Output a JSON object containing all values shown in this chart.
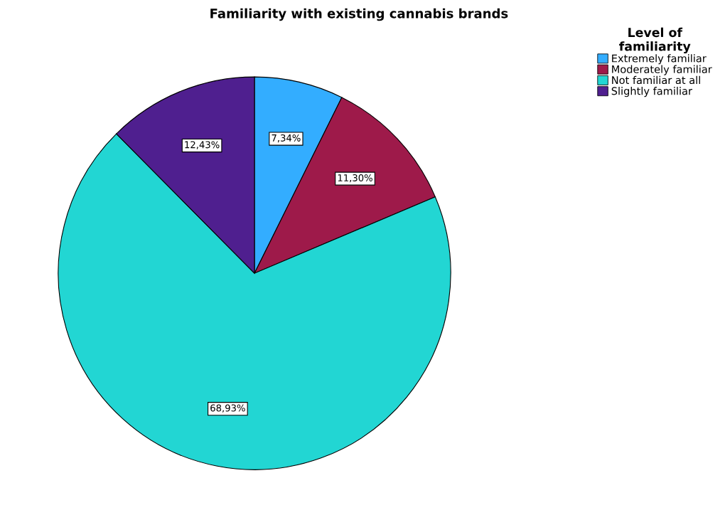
{
  "chart_data": {
    "type": "pie",
    "title": "Familiarity with existing cannabis brands",
    "categories": [
      "Extremely familiar",
      "Moderately familiar",
      "Not familiar at all",
      "Slightly familiar"
    ],
    "values": [
      7.34,
      11.3,
      68.93,
      12.43
    ],
    "colors": [
      "#33adff",
      "#9e1a4a",
      "#22d6d3",
      "#4f1f8f"
    ],
    "value_labels": [
      "7,34%",
      "11,30%",
      "68,93%",
      "12,43%"
    ],
    "legend_title": "Level of\nfamiliarity",
    "legend": "top right"
  }
}
